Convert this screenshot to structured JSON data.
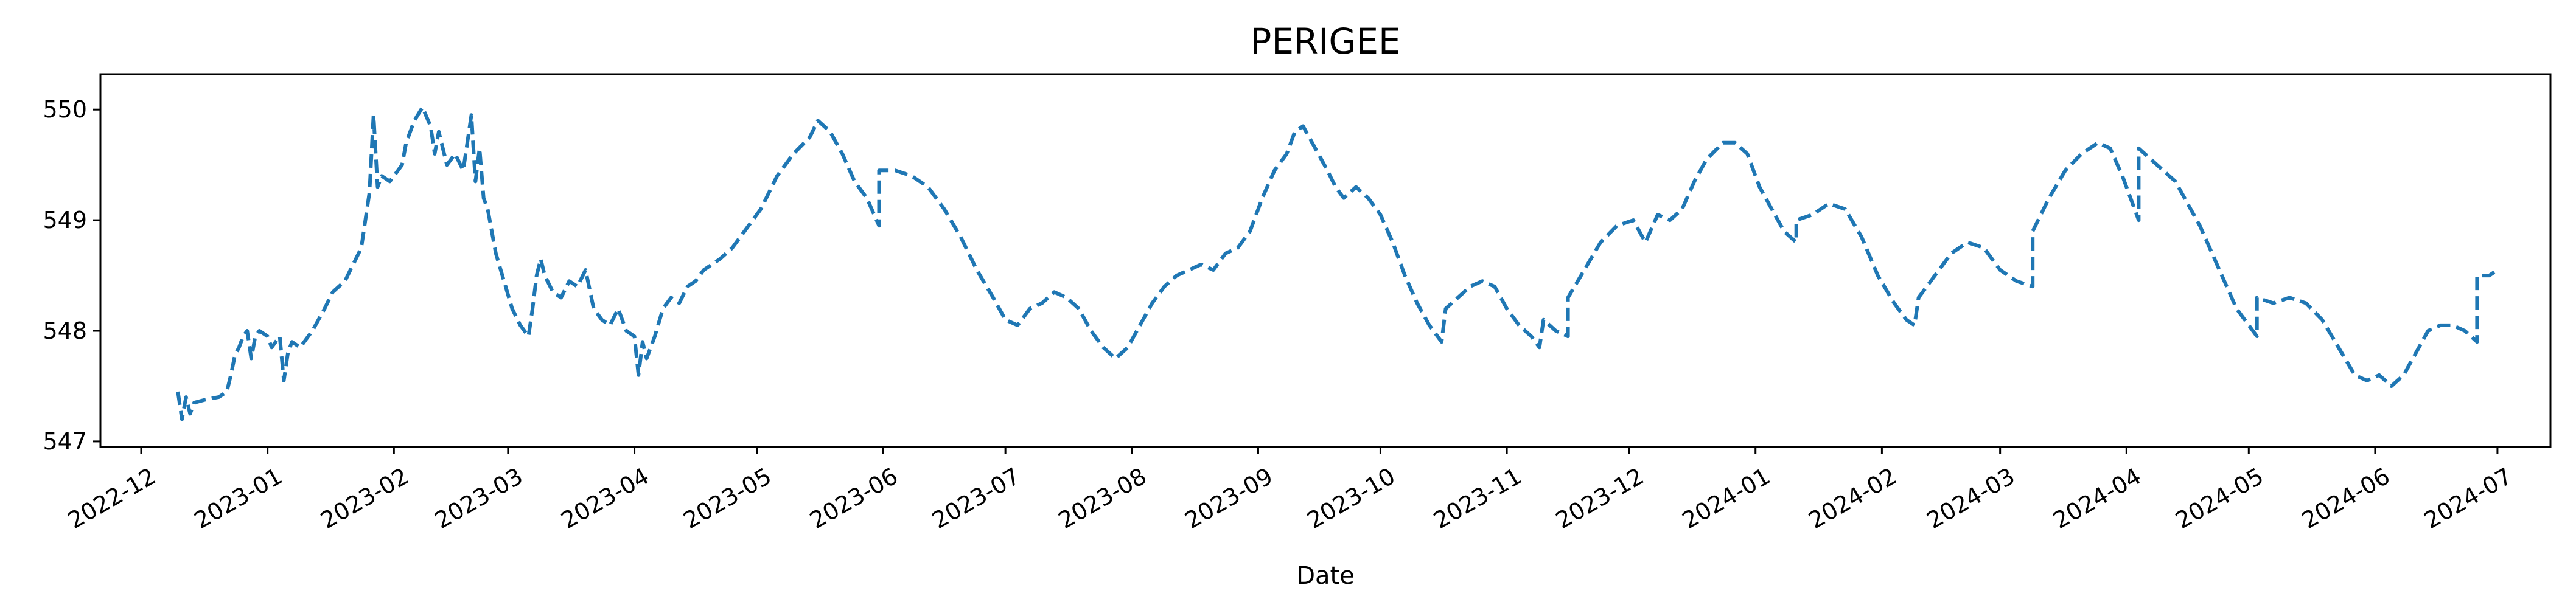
{
  "chart_data": {
    "type": "line",
    "title": "PERIGEE",
    "xlabel": "Date",
    "ylabel": "",
    "x_ticks": [
      "2022-12",
      "2023-01",
      "2023-02",
      "2023-03",
      "2023-04",
      "2023-05",
      "2023-06",
      "2023-07",
      "2023-08",
      "2023-09",
      "2023-10",
      "2023-11",
      "2023-12",
      "2024-01",
      "2024-02",
      "2024-03",
      "2024-04",
      "2024-05",
      "2024-06",
      "2024-07"
    ],
    "y_ticks": [
      547,
      548,
      549,
      550
    ],
    "xlim": [
      "2022-11-21",
      "2024-07-14"
    ],
    "ylim": [
      546.95,
      550.32
    ],
    "grid": false,
    "line_color": "#1f77b4",
    "line_style": "dashed",
    "series": [
      {
        "points": [
          [
            "2022-12-10",
            547.45
          ],
          [
            "2022-12-11",
            547.2
          ],
          [
            "2022-12-12",
            547.4
          ],
          [
            "2022-12-13",
            547.25
          ],
          [
            "2022-12-14",
            547.35
          ],
          [
            "2022-12-17",
            547.38
          ],
          [
            "2022-12-20",
            547.4
          ],
          [
            "2022-12-22",
            547.45
          ],
          [
            "2022-12-23",
            547.6
          ],
          [
            "2022-12-24",
            547.78
          ],
          [
            "2022-12-25",
            547.85
          ],
          [
            "2022-12-26",
            547.95
          ],
          [
            "2022-12-27",
            548.0
          ],
          [
            "2022-12-28",
            547.75
          ],
          [
            "2022-12-29",
            547.95
          ],
          [
            "2022-12-30",
            548.0
          ],
          [
            "2023-01-01",
            547.95
          ],
          [
            "2023-01-02",
            547.85
          ],
          [
            "2023-01-03",
            547.9
          ],
          [
            "2023-01-04",
            547.95
          ],
          [
            "2023-01-05",
            547.55
          ],
          [
            "2023-01-06",
            547.8
          ],
          [
            "2023-01-07",
            547.9
          ],
          [
            "2023-01-09",
            547.85
          ],
          [
            "2023-01-12",
            548.0
          ],
          [
            "2023-01-15",
            548.2
          ],
          [
            "2023-01-17",
            548.35
          ],
          [
            "2023-01-20",
            548.45
          ],
          [
            "2023-01-22",
            548.6
          ],
          [
            "2023-01-24",
            548.75
          ],
          [
            "2023-01-25",
            549.0
          ],
          [
            "2023-01-26",
            549.25
          ],
          [
            "2023-01-27",
            549.95
          ],
          [
            "2023-01-28",
            549.3
          ],
          [
            "2023-01-29",
            549.4
          ],
          [
            "2023-01-31",
            549.35
          ],
          [
            "2023-02-02",
            549.45
          ],
          [
            "2023-02-03",
            549.5
          ],
          [
            "2023-02-04",
            549.7
          ],
          [
            "2023-02-06",
            549.9
          ],
          [
            "2023-02-08",
            550.02
          ],
          [
            "2023-02-10",
            549.85
          ],
          [
            "2023-02-11",
            549.6
          ],
          [
            "2023-02-12",
            549.8
          ],
          [
            "2023-02-14",
            549.5
          ],
          [
            "2023-02-16",
            549.6
          ],
          [
            "2023-02-18",
            549.45
          ],
          [
            "2023-02-20",
            549.95
          ],
          [
            "2023-02-21",
            549.35
          ],
          [
            "2023-02-22",
            549.65
          ],
          [
            "2023-02-23",
            549.2
          ],
          [
            "2023-02-24",
            549.1
          ],
          [
            "2023-02-26",
            548.7
          ],
          [
            "2023-02-28",
            548.45
          ],
          [
            "2023-03-02",
            548.2
          ],
          [
            "2023-03-04",
            548.05
          ],
          [
            "2023-03-06",
            547.95
          ],
          [
            "2023-03-07",
            548.2
          ],
          [
            "2023-03-08",
            548.5
          ],
          [
            "2023-03-09",
            548.65
          ],
          [
            "2023-03-10",
            548.5
          ],
          [
            "2023-03-12",
            548.35
          ],
          [
            "2023-03-14",
            548.3
          ],
          [
            "2023-03-16",
            548.45
          ],
          [
            "2023-03-18",
            548.4
          ],
          [
            "2023-03-20",
            548.55
          ],
          [
            "2023-03-22",
            548.2
          ],
          [
            "2023-03-24",
            548.1
          ],
          [
            "2023-03-26",
            548.05
          ],
          [
            "2023-03-28",
            548.2
          ],
          [
            "2023-03-30",
            548.0
          ],
          [
            "2023-04-01",
            547.95
          ],
          [
            "2023-04-02",
            547.6
          ],
          [
            "2023-04-03",
            547.9
          ],
          [
            "2023-04-04",
            547.75
          ],
          [
            "2023-04-06",
            547.95
          ],
          [
            "2023-04-08",
            548.2
          ],
          [
            "2023-04-10",
            548.3
          ],
          [
            "2023-04-12",
            548.25
          ],
          [
            "2023-04-14",
            548.4
          ],
          [
            "2023-04-16",
            548.45
          ],
          [
            "2023-04-18",
            548.55
          ],
          [
            "2023-04-20",
            548.6
          ],
          [
            "2023-04-22",
            548.65
          ],
          [
            "2023-04-25",
            548.75
          ],
          [
            "2023-04-28",
            548.9
          ],
          [
            "2023-05-02",
            549.1
          ],
          [
            "2023-05-06",
            549.4
          ],
          [
            "2023-05-10",
            549.6
          ],
          [
            "2023-05-14",
            549.75
          ],
          [
            "2023-05-16",
            549.9
          ],
          [
            "2023-05-19",
            549.8
          ],
          [
            "2023-05-22",
            549.6
          ],
          [
            "2023-05-25",
            549.35
          ],
          [
            "2023-05-28",
            549.2
          ],
          [
            "2023-05-31",
            548.95
          ],
          [
            "2023-05-31",
            549.45
          ],
          [
            "2023-06-04",
            549.45
          ],
          [
            "2023-06-08",
            549.4
          ],
          [
            "2023-06-12",
            549.3
          ],
          [
            "2023-06-16",
            549.1
          ],
          [
            "2023-06-20",
            548.85
          ],
          [
            "2023-06-24",
            548.55
          ],
          [
            "2023-06-28",
            548.3
          ],
          [
            "2023-07-01",
            548.1
          ],
          [
            "2023-07-04",
            548.05
          ],
          [
            "2023-07-07",
            548.2
          ],
          [
            "2023-07-10",
            548.25
          ],
          [
            "2023-07-13",
            548.35
          ],
          [
            "2023-07-16",
            548.3
          ],
          [
            "2023-07-19",
            548.2
          ],
          [
            "2023-07-22",
            548.0
          ],
          [
            "2023-07-25",
            547.85
          ],
          [
            "2023-07-28",
            547.75
          ],
          [
            "2023-07-31",
            547.85
          ],
          [
            "2023-08-03",
            548.05
          ],
          [
            "2023-08-06",
            548.25
          ],
          [
            "2023-08-09",
            548.4
          ],
          [
            "2023-08-12",
            548.5
          ],
          [
            "2023-08-15",
            548.55
          ],
          [
            "2023-08-18",
            548.6
          ],
          [
            "2023-08-21",
            548.55
          ],
          [
            "2023-08-24",
            548.7
          ],
          [
            "2023-08-27",
            548.75
          ],
          [
            "2023-08-30",
            548.9
          ],
          [
            "2023-09-02",
            549.2
          ],
          [
            "2023-09-05",
            549.45
          ],
          [
            "2023-09-08",
            549.6
          ],
          [
            "2023-09-10",
            549.8
          ],
          [
            "2023-09-12",
            549.85
          ],
          [
            "2023-09-15",
            549.65
          ],
          [
            "2023-09-18",
            549.45
          ],
          [
            "2023-09-20",
            549.3
          ],
          [
            "2023-09-22",
            549.2
          ],
          [
            "2023-09-25",
            549.3
          ],
          [
            "2023-09-28",
            549.2
          ],
          [
            "2023-10-01",
            549.05
          ],
          [
            "2023-10-04",
            548.8
          ],
          [
            "2023-10-07",
            548.5
          ],
          [
            "2023-10-10",
            548.25
          ],
          [
            "2023-10-13",
            548.05
          ],
          [
            "2023-10-16",
            547.9
          ],
          [
            "2023-10-17",
            548.2
          ],
          [
            "2023-10-20",
            548.3
          ],
          [
            "2023-10-23",
            548.4
          ],
          [
            "2023-10-26",
            548.45
          ],
          [
            "2023-10-29",
            548.4
          ],
          [
            "2023-11-01",
            548.2
          ],
          [
            "2023-11-04",
            548.05
          ],
          [
            "2023-11-07",
            547.95
          ],
          [
            "2023-11-09",
            547.85
          ],
          [
            "2023-11-10",
            548.1
          ],
          [
            "2023-11-13",
            548.0
          ],
          [
            "2023-11-16",
            547.95
          ],
          [
            "2023-11-16",
            548.3
          ],
          [
            "2023-11-20",
            548.55
          ],
          [
            "2023-11-24",
            548.8
          ],
          [
            "2023-11-28",
            548.95
          ],
          [
            "2023-12-02",
            549.0
          ],
          [
            "2023-12-05",
            548.8
          ],
          [
            "2023-12-08",
            549.05
          ],
          [
            "2023-12-11",
            549.0
          ],
          [
            "2023-12-14",
            549.1
          ],
          [
            "2023-12-17",
            549.35
          ],
          [
            "2023-12-20",
            549.55
          ],
          [
            "2023-12-24",
            549.7
          ],
          [
            "2023-12-27",
            549.7
          ],
          [
            "2023-12-30",
            549.6
          ],
          [
            "2024-01-02",
            549.3
          ],
          [
            "2024-01-05",
            549.1
          ],
          [
            "2024-01-08",
            548.9
          ],
          [
            "2024-01-11",
            548.8
          ],
          [
            "2024-01-11",
            549.0
          ],
          [
            "2024-01-15",
            549.05
          ],
          [
            "2024-01-19",
            549.15
          ],
          [
            "2024-01-23",
            549.1
          ],
          [
            "2024-01-27",
            548.85
          ],
          [
            "2024-01-31",
            548.5
          ],
          [
            "2024-02-04",
            548.25
          ],
          [
            "2024-02-07",
            548.1
          ],
          [
            "2024-02-09",
            548.05
          ],
          [
            "2024-02-10",
            548.3
          ],
          [
            "2024-02-14",
            548.5
          ],
          [
            "2024-02-18",
            548.7
          ],
          [
            "2024-02-22",
            548.8
          ],
          [
            "2024-02-26",
            548.75
          ],
          [
            "2024-03-01",
            548.55
          ],
          [
            "2024-03-05",
            548.45
          ],
          [
            "2024-03-09",
            548.4
          ],
          [
            "2024-03-09",
            548.9
          ],
          [
            "2024-03-13",
            549.2
          ],
          [
            "2024-03-17",
            549.45
          ],
          [
            "2024-03-21",
            549.6
          ],
          [
            "2024-03-25",
            549.7
          ],
          [
            "2024-03-28",
            549.65
          ],
          [
            "2024-03-31",
            549.4
          ],
          [
            "2024-04-02",
            549.2
          ],
          [
            "2024-04-04",
            549.0
          ],
          [
            "2024-04-04",
            549.65
          ],
          [
            "2024-04-07",
            549.55
          ],
          [
            "2024-04-10",
            549.45
          ],
          [
            "2024-04-13",
            549.35
          ],
          [
            "2024-04-16",
            549.15
          ],
          [
            "2024-04-19",
            548.95
          ],
          [
            "2024-04-22",
            548.7
          ],
          [
            "2024-04-25",
            548.45
          ],
          [
            "2024-04-28",
            548.2
          ],
          [
            "2024-05-01",
            548.05
          ],
          [
            "2024-05-03",
            547.95
          ],
          [
            "2024-05-03",
            548.3
          ],
          [
            "2024-05-07",
            548.25
          ],
          [
            "2024-05-11",
            548.3
          ],
          [
            "2024-05-15",
            548.25
          ],
          [
            "2024-05-19",
            548.1
          ],
          [
            "2024-05-23",
            547.85
          ],
          [
            "2024-05-27",
            547.6
          ],
          [
            "2024-05-30",
            547.55
          ],
          [
            "2024-06-02",
            547.6
          ],
          [
            "2024-06-05",
            547.5
          ],
          [
            "2024-06-08",
            547.6
          ],
          [
            "2024-06-11",
            547.8
          ],
          [
            "2024-06-14",
            548.0
          ],
          [
            "2024-06-17",
            548.05
          ],
          [
            "2024-06-20",
            548.05
          ],
          [
            "2024-06-23",
            548.0
          ],
          [
            "2024-06-26",
            547.9
          ],
          [
            "2024-06-26",
            548.5
          ],
          [
            "2024-06-29",
            548.5
          ],
          [
            "2024-07-01",
            548.55
          ]
        ]
      }
    ]
  }
}
